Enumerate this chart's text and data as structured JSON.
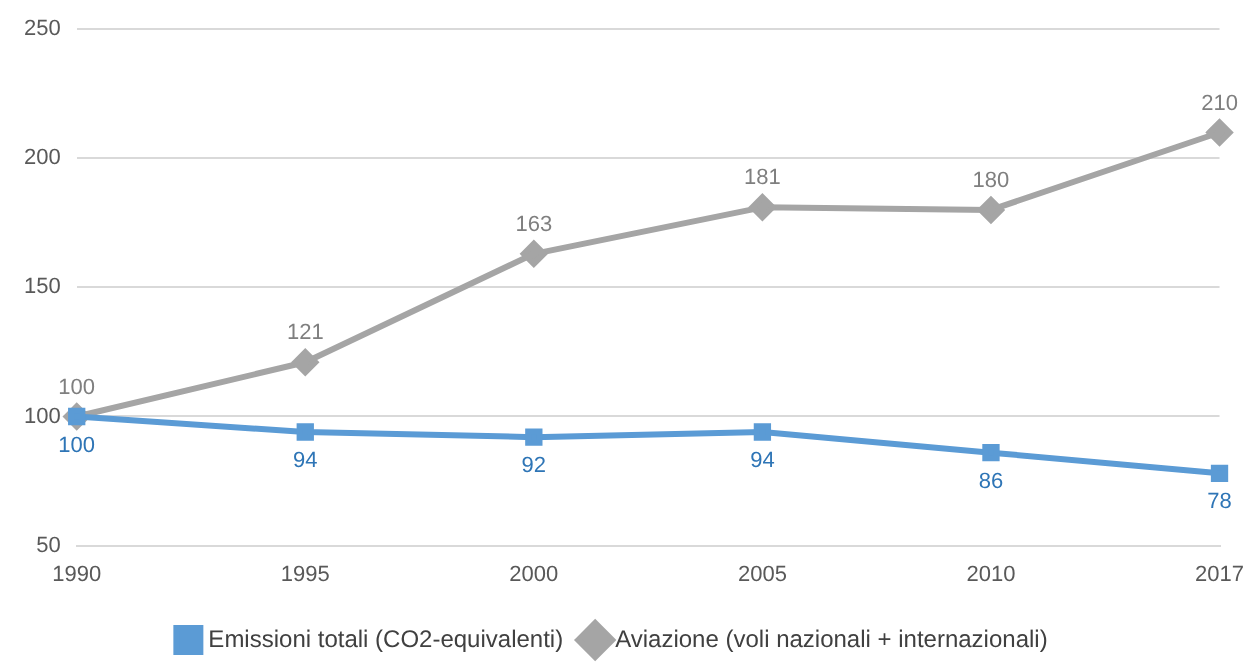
{
  "chart_data": {
    "type": "line",
    "categories": [
      "1990",
      "1995",
      "2000",
      "2005",
      "2010",
      "2017"
    ],
    "series": [
      {
        "name": "Emissioni totali (CO2-equivalenti)",
        "color": "#5b9bd5",
        "marker": "square",
        "values": [
          100,
          94,
          92,
          94,
          86,
          78
        ]
      },
      {
        "name": "Aviazione (voli nazionali + internazionali)",
        "color": "#a5a5a5",
        "marker": "diamond",
        "values": [
          100,
          121,
          163,
          181,
          180,
          210
        ]
      }
    ],
    "ylim": [
      50,
      250
    ],
    "yticks": [
      50,
      100,
      150,
      200,
      250
    ],
    "grid": "y",
    "legend": "bottom",
    "data_labels": true
  }
}
